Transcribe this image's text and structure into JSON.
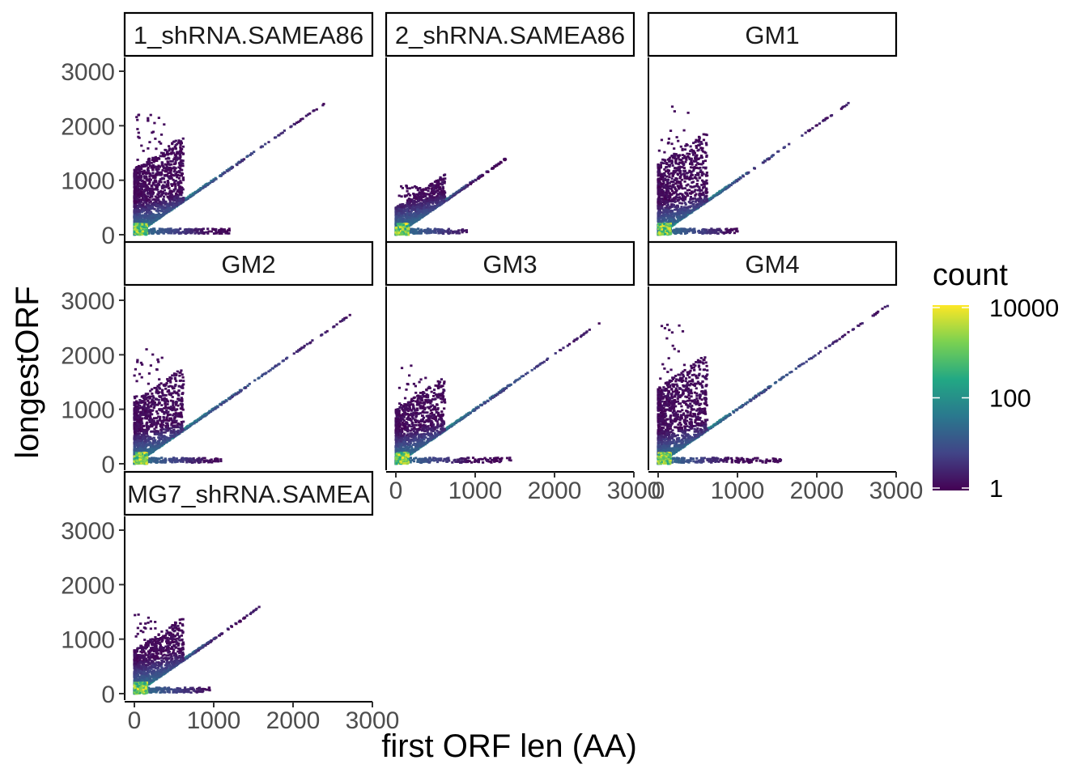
{
  "chart_data": {
    "type": "heatmap",
    "subtype": "hexbin-faceted",
    "xlabel": "first ORF len (AA)",
    "ylabel": "longestORF",
    "xlim": [
      0,
      3000
    ],
    "ylim": [
      0,
      3000
    ],
    "x_ticks": [
      "0",
      "1000",
      "2000",
      "3000"
    ],
    "y_ticks": [
      "0",
      "1000",
      "2000",
      "3000"
    ],
    "legend": {
      "title": "count",
      "scale": "log10",
      "range": [
        1,
        10000
      ],
      "labels": [
        "10000",
        "100",
        "1"
      ],
      "colors": [
        "#440154",
        "#414487",
        "#2a788e",
        "#22a884",
        "#7ad151",
        "#fde725"
      ],
      "placement": "right"
    },
    "background": "#ffffff",
    "panels": [
      {
        "label": "1_shRNA.SAMEA86",
        "maxXY": 2450,
        "yOutMax": 2200,
        "xOutMax": 1200,
        "density": 1.0
      },
      {
        "label": "2_shRNA.SAMEA86",
        "maxXY": 1500,
        "yOutMax": 900,
        "xOutMax": 900,
        "density": 0.75
      },
      {
        "label": "GM1",
        "maxXY": 2400,
        "yOutMax": 2350,
        "xOutMax": 1000,
        "density": 0.8
      },
      {
        "label": "GM2",
        "maxXY": 2750,
        "yOutMax": 2100,
        "xOutMax": 1100,
        "density": 0.85
      },
      {
        "label": "GM3",
        "maxXY": 2650,
        "yOutMax": 1800,
        "xOutMax": 1450,
        "density": 0.75
      },
      {
        "label": "GM4",
        "maxXY": 2900,
        "yOutMax": 2550,
        "xOutMax": 1550,
        "density": 0.9
      },
      {
        "label": "MG7_shRNA.SAMEA",
        "maxXY": 1650,
        "yOutMax": 1450,
        "xOutMax": 950,
        "density": 0.75
      }
    ]
  }
}
